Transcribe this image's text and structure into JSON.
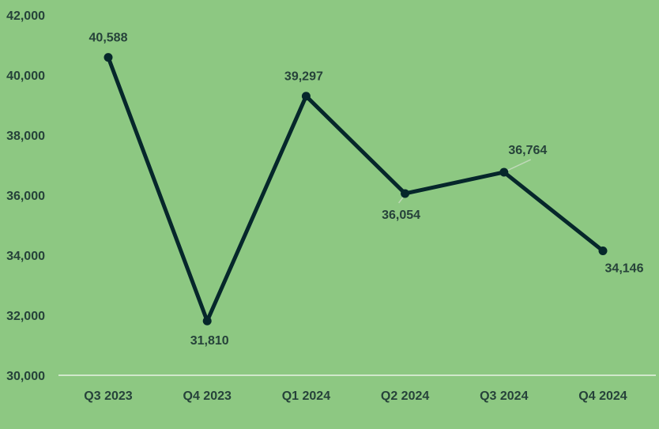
{
  "chart_data": {
    "type": "line",
    "title": "",
    "xlabel": "",
    "ylabel": "",
    "categories": [
      "Q3 2023",
      "Q4 2023",
      "Q1 2024",
      "Q2 2024",
      "Q3 2024",
      "Q4 2024"
    ],
    "series": [
      {
        "values": [
          40588,
          31810,
          39297,
          36054,
          36764,
          34146
        ]
      }
    ],
    "data_labels": [
      "40,588",
      "31,810",
      "39,297",
      "36,054",
      "36,764",
      "34,146"
    ],
    "ylim": [
      30000,
      42000
    ],
    "yticks": [
      30000,
      32000,
      34000,
      36000,
      38000,
      40000,
      42000
    ],
    "ytick_labels": [
      "30,000",
      "32,000",
      "34,000",
      "36,000",
      "38,000",
      "40,000",
      "42,000"
    ],
    "grid": false,
    "legend": "none",
    "colors": {
      "background": "#8DC882",
      "line": "#06272B",
      "axis": "#E8F2E4",
      "text": "#26423A"
    }
  }
}
